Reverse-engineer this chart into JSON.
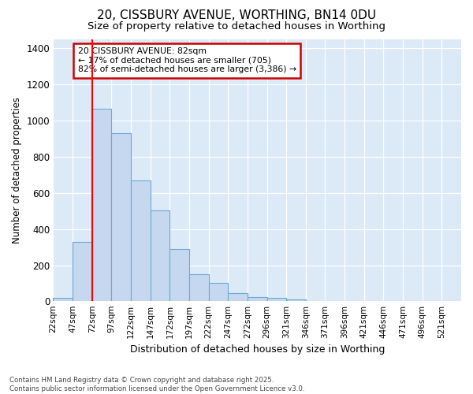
{
  "title1": "20, CISSBURY AVENUE, WORTHING, BN14 0DU",
  "title2": "Size of property relative to detached houses in Worthing",
  "xlabel": "Distribution of detached houses by size in Worthing",
  "ylabel": "Number of detached properties",
  "categories": [
    "22sqm",
    "47sqm",
    "72sqm",
    "97sqm",
    "122sqm",
    "147sqm",
    "172sqm",
    "197sqm",
    "222sqm",
    "247sqm",
    "272sqm",
    "296sqm",
    "321sqm",
    "346sqm",
    "371sqm",
    "396sqm",
    "421sqm",
    "446sqm",
    "471sqm",
    "496sqm",
    "521sqm"
  ],
  "values": [
    20,
    330,
    1065,
    930,
    670,
    505,
    290,
    150,
    100,
    45,
    22,
    17,
    12,
    0,
    0,
    0,
    0,
    0,
    0,
    0,
    0
  ],
  "bar_color": "#c5d8f0",
  "bar_edge_color": "#6aaad4",
  "annotation_title": "20 CISSBURY AVENUE: 82sqm",
  "annotation_line1": "← 17% of detached houses are smaller (705)",
  "annotation_line2": "82% of semi-detached houses are larger (3,386) →",
  "annotation_box_color": "#ffffff",
  "annotation_box_edge": "#cc0000",
  "ylim": [
    0,
    1450
  ],
  "yticks": [
    0,
    200,
    400,
    600,
    800,
    1000,
    1200,
    1400
  ],
  "plot_bg_color": "#dce9f7",
  "fig_bg_color": "#ffffff",
  "grid_color": "#ffffff",
  "footer1": "Contains HM Land Registry data © Crown copyright and database right 2025.",
  "footer2": "Contains public sector information licensed under the Open Government Licence v3.0."
}
